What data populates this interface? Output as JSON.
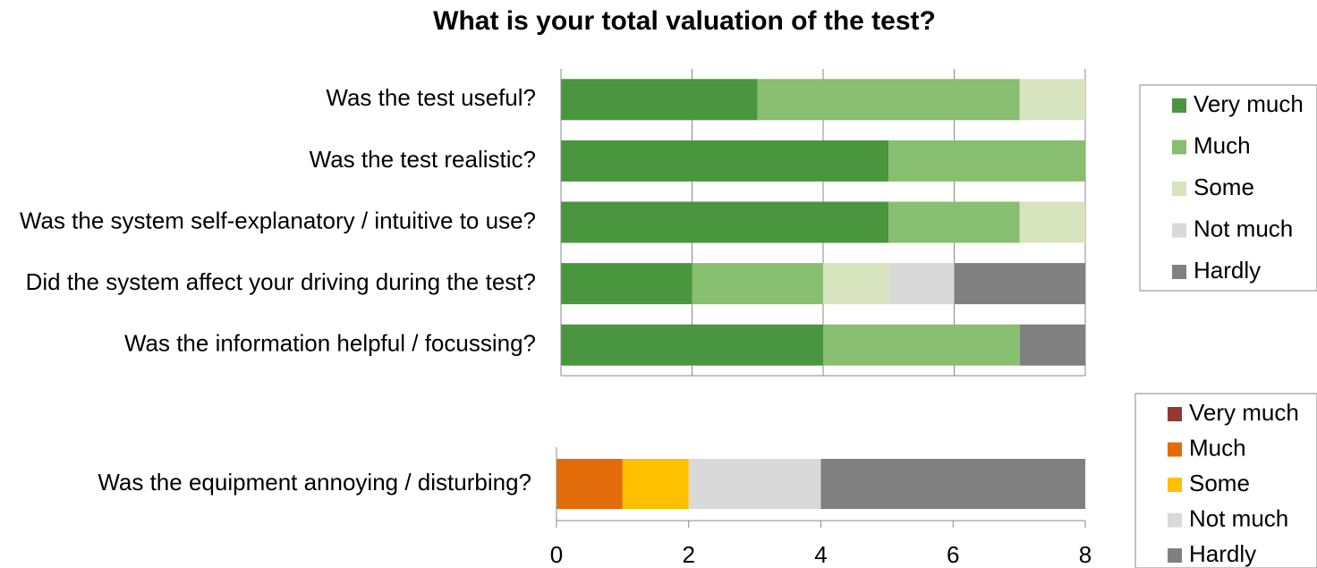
{
  "chart_data": [
    {
      "type": "stacked_bar_horizontal",
      "title": "What is your total valuation of the test?",
      "categories": [
        "Was the test useful?",
        "Was the test realistic?",
        "Was the system self-explanatory / intuitive to use?",
        "Did the system affect your driving during the test?",
        "Was the information helpful / focussing?"
      ],
      "series": [
        {
          "name": "Very much",
          "color": "#4a963e",
          "values": [
            3,
            5,
            5,
            2,
            4
          ]
        },
        {
          "name": "Much",
          "color": "#88be6f",
          "values": [
            4,
            3,
            2,
            2,
            3
          ]
        },
        {
          "name": "Some",
          "color": "#d8e4bd",
          "values": [
            1,
            0,
            1,
            1,
            0
          ]
        },
        {
          "name": "Not much",
          "color": "#d9d9d9",
          "values": [
            0,
            0,
            0,
            1,
            0
          ]
        },
        {
          "name": "Hardly",
          "color": "#808080",
          "values": [
            0,
            0,
            0,
            2,
            1
          ]
        }
      ],
      "xlim": [
        0,
        8
      ],
      "xticks": [
        0,
        2,
        4,
        6,
        8
      ],
      "grid": true,
      "show_tick_labels": false,
      "legend": "right"
    },
    {
      "type": "stacked_bar_horizontal",
      "categories": [
        "Was the equipment annoying / disturbing?"
      ],
      "series": [
        {
          "name": "Very much",
          "color": "#953735",
          "values": [
            0
          ]
        },
        {
          "name": "Much",
          "color": "#e36c0a",
          "values": [
            1
          ]
        },
        {
          "name": "Some",
          "color": "#ffc000",
          "values": [
            1
          ]
        },
        {
          "name": "Not much",
          "color": "#d9d9d9",
          "values": [
            2
          ]
        },
        {
          "name": "Hardly",
          "color": "#808080",
          "values": [
            4
          ]
        }
      ],
      "xlim": [
        0,
        8
      ],
      "xticks": [
        0,
        2,
        4,
        6,
        8
      ],
      "grid": false,
      "show_tick_labels": true,
      "legend": "right"
    }
  ]
}
